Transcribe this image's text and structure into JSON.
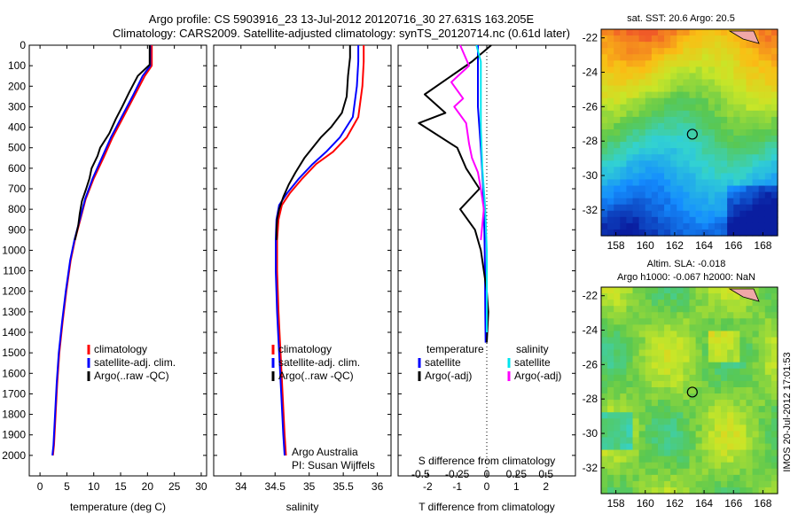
{
  "header": {
    "line1": "Argo profile: CS 5903916_23 13-Jul-2012 20120716_30 27.631S 163.205E",
    "line2": "Climatology: CARS2009. Satellite-adjusted climatology: synTS_20120714.nc (0.61d later)"
  },
  "chart_data": [
    {
      "type": "line",
      "xlabel": "temperature (deg C)",
      "ylabel": "",
      "xlim": [
        -2,
        31
      ],
      "ylim": [
        2100,
        0
      ],
      "xticks": [
        "0",
        "5",
        "10",
        "15",
        "20",
        "25",
        "30"
      ],
      "yticks": [
        "0",
        "100",
        "200",
        "300",
        "400",
        "500",
        "600",
        "700",
        "800",
        "900",
        "1000",
        "1100",
        "1200",
        "1300",
        "1400",
        "1500",
        "1600",
        "1700",
        "1800",
        "1900",
        "2000"
      ],
      "legend": [
        "climatology",
        "satellite-adj. clim.",
        "Argo(..raw -QC)"
      ],
      "legend_position": "lower-center",
      "series": [
        {
          "name": "climatology",
          "color": "#ff0000",
          "points": [
            [
              20.8,
              0
            ],
            [
              20.8,
              100
            ],
            [
              19.5,
              150
            ],
            [
              17.5,
              250
            ],
            [
              15.5,
              350
            ],
            [
              13.5,
              450
            ],
            [
              11.8,
              550
            ],
            [
              10,
              650
            ],
            [
              8.5,
              750
            ],
            [
              7.5,
              850
            ],
            [
              6.5,
              950
            ],
            [
              5.7,
              1050
            ],
            [
              4.9,
              1200
            ],
            [
              4.2,
              1350
            ],
            [
              3.6,
              1500
            ],
            [
              3.2,
              1650
            ],
            [
              2.9,
              1800
            ],
            [
              2.6,
              1950
            ],
            [
              2.4,
              2000
            ]
          ]
        },
        {
          "name": "satellite-adj. clim.",
          "color": "#0000ff",
          "points": [
            [
              20.5,
              0
            ],
            [
              20.5,
              100
            ],
            [
              19.1,
              150
            ],
            [
              17.2,
              250
            ],
            [
              15.2,
              350
            ],
            [
              13.2,
              450
            ],
            [
              11.5,
              550
            ],
            [
              9.8,
              650
            ],
            [
              8.4,
              750
            ],
            [
              7.4,
              850
            ],
            [
              6.4,
              950
            ],
            [
              5.6,
              1050
            ],
            [
              4.8,
              1200
            ],
            [
              4.1,
              1350
            ],
            [
              3.5,
              1500
            ],
            [
              3.1,
              1650
            ],
            [
              2.8,
              1800
            ],
            [
              2.5,
              1950
            ],
            [
              2.3,
              2000
            ]
          ]
        },
        {
          "name": "Argo(..raw -QC)",
          "color": "#000000",
          "points": [
            [
              20.4,
              0
            ],
            [
              20.4,
              95
            ],
            [
              18.2,
              150
            ],
            [
              16.6,
              230
            ],
            [
              15.3,
              300
            ],
            [
              14.1,
              360
            ],
            [
              12.9,
              430
            ],
            [
              11.2,
              500
            ],
            [
              10.7,
              540
            ],
            [
              9.6,
              600
            ],
            [
              9.2,
              650
            ],
            [
              8.6,
              700
            ],
            [
              7.8,
              760
            ],
            [
              7.4,
              820
            ],
            [
              7.1,
              880
            ],
            [
              6.5,
              950
            ]
          ]
        }
      ]
    },
    {
      "type": "line",
      "xlabel": "salinity",
      "xlim": [
        33.6,
        36.2
      ],
      "ylim": [
        2100,
        0
      ],
      "xticks": [
        "34",
        "34.5",
        "35",
        "35.5",
        "36"
      ],
      "legend": [
        "climatology",
        "satellite-adj. clim.",
        "Argo(..raw -QC)"
      ],
      "legend_position": "lower-center",
      "annotation": [
        "Argo Australia",
        "PI: Susan Wijffels"
      ],
      "series": [
        {
          "name": "climatology",
          "color": "#ff0000",
          "points": [
            [
              35.8,
              0
            ],
            [
              35.8,
              80
            ],
            [
              35.78,
              200
            ],
            [
              35.72,
              350
            ],
            [
              35.55,
              450
            ],
            [
              35.35,
              520
            ],
            [
              35.1,
              580
            ],
            [
              34.9,
              650
            ],
            [
              34.72,
              720
            ],
            [
              34.6,
              780
            ],
            [
              34.55,
              850
            ],
            [
              34.53,
              950
            ],
            [
              34.53,
              1100
            ],
            [
              34.55,
              1300
            ],
            [
              34.58,
              1500
            ],
            [
              34.61,
              1700
            ],
            [
              34.64,
              1900
            ],
            [
              34.66,
              2000
            ]
          ]
        },
        {
          "name": "satellite-adj. clim.",
          "color": "#0000ff",
          "points": [
            [
              35.72,
              0
            ],
            [
              35.72,
              80
            ],
            [
              35.7,
              200
            ],
            [
              35.64,
              350
            ],
            [
              35.45,
              450
            ],
            [
              35.25,
              520
            ],
            [
              35.05,
              580
            ],
            [
              34.85,
              650
            ],
            [
              34.68,
              720
            ],
            [
              34.56,
              780
            ],
            [
              34.52,
              850
            ],
            [
              34.51,
              950
            ],
            [
              34.51,
              1100
            ],
            [
              34.53,
              1300
            ],
            [
              34.56,
              1500
            ],
            [
              34.59,
              1700
            ],
            [
              34.62,
              1900
            ],
            [
              34.64,
              2000
            ]
          ]
        },
        {
          "name": "Argo(..raw -QC)",
          "color": "#000000",
          "points": [
            [
              35.6,
              0
            ],
            [
              35.6,
              60
            ],
            [
              35.57,
              150
            ],
            [
              35.55,
              250
            ],
            [
              35.48,
              330
            ],
            [
              35.32,
              400
            ],
            [
              35.17,
              450
            ],
            [
              35.05,
              500
            ],
            [
              34.93,
              550
            ],
            [
              34.8,
              620
            ],
            [
              34.7,
              680
            ],
            [
              34.62,
              740
            ],
            [
              34.56,
              800
            ],
            [
              34.53,
              850
            ],
            [
              34.52,
              900
            ],
            [
              34.52,
              950
            ]
          ]
        }
      ]
    },
    {
      "type": "line",
      "xlabel": "T difference from climatology",
      "xlabel_top": "S difference from climatology",
      "xlim": [
        -3,
        3
      ],
      "ylim": [
        2100,
        0
      ],
      "xticks": [
        "-2",
        "-1",
        "0",
        "1",
        "2"
      ],
      "xticks_top": [
        "-0.5",
        "-0.25",
        "0",
        "0.25",
        "0.5"
      ],
      "legend_headers": [
        "temperature",
        "salinity"
      ],
      "legend": [
        "satellite",
        "Argo(-adj)",
        "satellite",
        "Argo(-adj)"
      ],
      "series": [
        {
          "name": "satellite",
          "group": "temperature",
          "color": "#0000ff",
          "points": [
            [
              -0.3,
              0
            ],
            [
              -0.3,
              100
            ],
            [
              -0.3,
              300
            ],
            [
              -0.2,
              500
            ],
            [
              -0.12,
              700
            ],
            [
              -0.08,
              900
            ],
            [
              -0.06,
              1100
            ],
            [
              -0.05,
              1300
            ],
            [
              -0.04,
              1450
            ]
          ]
        },
        {
          "name": "Argo(-adj)",
          "group": "temperature",
          "color": "#000000",
          "points": [
            [
              0.15,
              0
            ],
            [
              -0.5,
              80
            ],
            [
              -1.4,
              170
            ],
            [
              -2.1,
              240
            ],
            [
              -1.4,
              330
            ],
            [
              -2.3,
              380
            ],
            [
              -1.0,
              500
            ],
            [
              -0.7,
              600
            ],
            [
              -0.25,
              700
            ],
            [
              -0.9,
              800
            ],
            [
              -0.4,
              900
            ],
            [
              -0.2,
              1000
            ],
            [
              -0.1,
              1100
            ],
            [
              0.0,
              1200
            ],
            [
              0.05,
              1300
            ],
            [
              0.0,
              1450
            ]
          ]
        },
        {
          "name": "satellite",
          "group": "salinity",
          "color": "#00e5ee",
          "points": [
            [
              -0.35,
              0
            ],
            [
              -0.2,
              80
            ],
            [
              -0.2,
              200
            ],
            [
              -0.2,
              400
            ],
            [
              -0.15,
              600
            ],
            [
              -0.05,
              800
            ],
            [
              0.0,
              1000
            ],
            [
              0.0,
              1200
            ],
            [
              0.0,
              1400
            ]
          ]
        },
        {
          "name": "Argo(-adj)",
          "group": "salinity",
          "color": "#ff00ff",
          "points": [
            [
              -0.9,
              0
            ],
            [
              -0.6,
              100
            ],
            [
              -1.2,
              180
            ],
            [
              -0.8,
              260
            ],
            [
              -1.1,
              300
            ],
            [
              -0.7,
              380
            ],
            [
              -0.6,
              480
            ],
            [
              -0.5,
              550
            ],
            [
              -0.3,
              620
            ],
            [
              -0.2,
              700
            ],
            [
              -0.1,
              800
            ],
            [
              -0.2,
              950
            ]
          ]
        }
      ]
    },
    {
      "type": "heatmap",
      "title": "sat. SST: 20.6  Argo: 20.5",
      "xticks": [
        "158",
        "160",
        "162",
        "164",
        "166",
        "168"
      ],
      "yticks": [
        "-22",
        "-24",
        "-26",
        "-28",
        "-30",
        "-32"
      ],
      "xlim": [
        157,
        169
      ],
      "ylim": [
        -33.5,
        -21.5
      ],
      "marker": [
        163.2,
        -27.6
      ]
    },
    {
      "type": "heatmap",
      "title": "Altim. SLA: -0.018",
      "subtitle": "Argo h1000: -0.067  h2000: NaN",
      "xticks": [
        "158",
        "160",
        "162",
        "164",
        "166",
        "168"
      ],
      "yticks": [
        "-22",
        "-24",
        "-26",
        "-28",
        "-30",
        "-32"
      ],
      "xlim": [
        157,
        169
      ],
      "ylim": [
        -33.5,
        -21.5
      ],
      "marker": [
        163.2,
        -27.6
      ]
    }
  ],
  "side_label": "IMOS 20-Jul-2012 17:01:53",
  "colors": {
    "climatology": "#ff0000",
    "satellite": "#0000ff",
    "argo": "#000000",
    "sal_satellite": "#00e5ee",
    "sal_argo": "#ff00ff"
  }
}
